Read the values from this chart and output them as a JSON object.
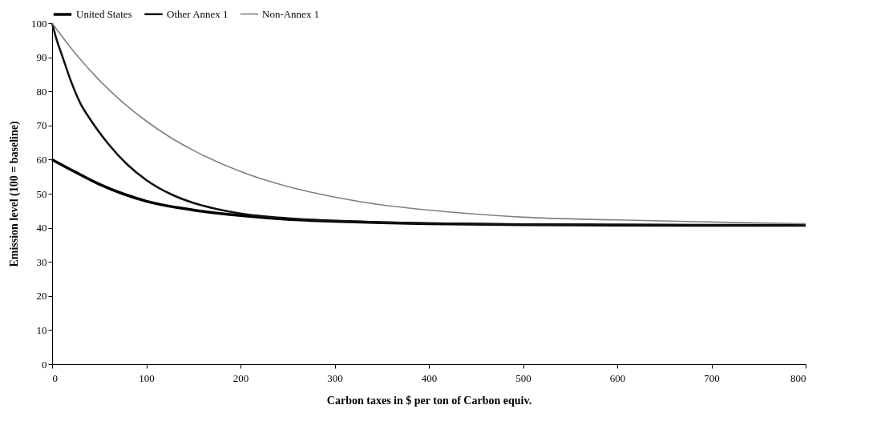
{
  "chart_data": {
    "type": "line",
    "xlabel": "Carbon taxes in $ per ton of Carbon equiv.",
    "ylabel": "Emission level (100 = baseline)",
    "xlim": [
      0,
      800
    ],
    "xticks": [
      0,
      100,
      200,
      300,
      400,
      500,
      600,
      700,
      800
    ],
    "ylim": [
      0,
      100
    ],
    "yticks": [
      0,
      10,
      20,
      30,
      40,
      50,
      60,
      70,
      80,
      90,
      100
    ],
    "grid": false,
    "legend": "top",
    "marker": "none",
    "line_style": "solid",
    "series": [
      {
        "name": "United States",
        "color": "#000000",
        "x": [
          0,
          25,
          50,
          75,
          100,
          150,
          200,
          250,
          300,
          350,
          400,
          500,
          600,
          700,
          800
        ],
        "values": [
          60,
          56.3,
          52.8,
          50,
          47.8,
          45.2,
          43.6,
          42.5,
          41.9,
          41.5,
          41.2,
          40.9,
          40.8,
          40.7,
          40.7
        ]
      },
      {
        "name": "Other Annex 1",
        "color": "#111111",
        "x": [
          0,
          5,
          10,
          20,
          30,
          40,
          60,
          80,
          100,
          125,
          150,
          175,
          200,
          250,
          300,
          350,
          400,
          500,
          600,
          700,
          800
        ],
        "values": [
          100,
          95,
          91,
          83,
          76.5,
          72,
          64.5,
          58.5,
          54,
          50,
          47.3,
          45.5,
          44.2,
          42.8,
          42.1,
          41.6,
          41.3,
          41,
          40.9,
          40.8,
          40.7
        ]
      },
      {
        "name": "Non-Annex 1",
        "color": "#808080",
        "x": [
          0,
          25,
          50,
          75,
          100,
          125,
          150,
          200,
          250,
          300,
          350,
          400,
          450,
          500,
          600,
          700,
          800
        ],
        "values": [
          100,
          91,
          83.3,
          76.8,
          71.3,
          66.6,
          62.7,
          56.5,
          52.1,
          49,
          46.7,
          45.2,
          44,
          43.1,
          42.3,
          41.7,
          41.2
        ]
      }
    ]
  }
}
